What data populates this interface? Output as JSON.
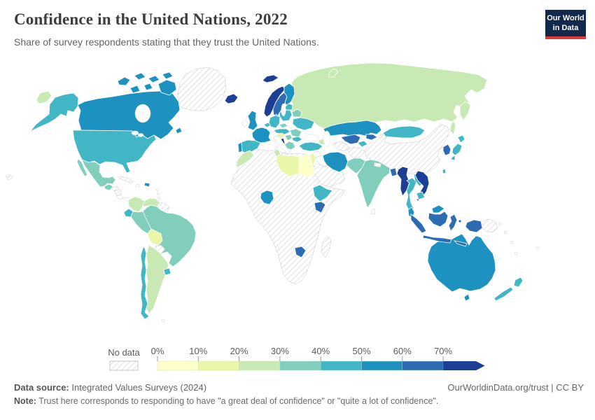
{
  "header": {
    "title": "Confidence in the United Nations, 2022",
    "subtitle": "Share of survey respondents stating that they trust the United Nations."
  },
  "logo": {
    "line1": "Our World",
    "line2": "in Data",
    "bg_color": "#12294b",
    "bar_color": "#dc3e34"
  },
  "legend": {
    "no_data_label": "No data",
    "tick_labels": [
      "0%",
      "10%",
      "20%",
      "30%",
      "40%",
      "50%",
      "60%",
      "70%"
    ],
    "bin_keys": [
      "0-10%",
      "10-20%",
      "20-30%",
      "30-40%",
      "40-50%",
      "50-60%",
      "60-70%",
      "70%+"
    ]
  },
  "footer": {
    "source_label": "Data source:",
    "source_value": "Integrated Values Surveys (2024)",
    "rights": "OurWorldinData.org/trust | CC BY",
    "note_label": "Note:",
    "note_value": "Trust here corresponds to responding to have \"a great deal of confidence\" or \"quite a lot of confidence\"."
  },
  "chart_data": {
    "type": "choropleth",
    "title": "Confidence in the United Nations, 2022",
    "unit": "% of survey respondents trusting the UN",
    "legend_position": "bottom",
    "axis_range_percent": [
      0,
      80
    ],
    "palette": {
      "0-10%": "#fefec9",
      "10-20%": "#eaf7a8",
      "20-30%": "#c9e9b4",
      "30-40%": "#80cebb",
      "40-50%": "#41b6c4",
      "50-60%": "#1d91c0",
      "60-70%": "#2d6cb3",
      "70%+": "#1c3e94",
      "no-data": "hatch",
      "not-shown": "#ffffff"
    },
    "country_bins": {
      "canada": "50-60%",
      "usa": "40-50%",
      "greenland": "no-data",
      "hawaii": "no-data",
      "mexico": "30-40%",
      "guatemala": "30-40%",
      "honduras": "no-data",
      "nicaragua": "no-data",
      "costa-rica": "not-shown",
      "panama": "not-shown",
      "cuba": "no-data",
      "dominican-republic": "50-60%",
      "jamaica": "not-shown",
      "antilles": "not-shown",
      "colombia": "20-30%",
      "venezuela": "20-30%",
      "guyana": "no-data",
      "ecuador": "40-50%",
      "peru": "30-40%",
      "brazil": "30-40%",
      "bolivia": "10-20%",
      "paraguay": "no-data",
      "uruguay": "40-50%",
      "argentina": "20-30%",
      "chile": "40-50%",
      "falkland": "not-shown",
      "iceland": "70%+",
      "norway": "70%+",
      "sweden": "60-70%",
      "finland": "50-60%",
      "denmark": "50-60%",
      "uk": "50-60%",
      "ireland": "not-shown",
      "portugal": "50-60%",
      "spain": "40-50%",
      "france": "50-60%",
      "benelux": "40-50%",
      "germany": "40-50%",
      "poland": "40-50%",
      "baltics": "40-50%",
      "belarus": "30-40%",
      "ukraine": "40-50%",
      "romania": "30-40%",
      "czechia": "30-40%",
      "austria-hungary": "40-50%",
      "croatia": "10-20%",
      "serbia": "30-40%",
      "albania": "70%+",
      "greece": "30-40%",
      "bulgaria": "40-50%",
      "italy": "not-shown",
      "russia": "20-30%",
      "kazakhstan": "50-60%",
      "caucasus": "20-30%",
      "turkey": "40-50%",
      "syria": "not-shown",
      "iraq": "not-shown",
      "jordan-israel": "10-20%",
      "saudi-arabia": "no-data",
      "iran": "50-60%",
      "turkmenistan": "no-data",
      "uzbekistan": "60-70%",
      "kyrgyzstan": "60-70%",
      "tajikistan": "40-50%",
      "afghanistan": "no-data",
      "pakistan": "30-40%",
      "india": "30-40%",
      "nepal": "no-data",
      "bangladesh": "60-70%",
      "sri-lanka": "not-shown",
      "china": "no-data",
      "mongolia": "40-50%",
      "south-korea": "60-70%",
      "japan": "40-50%",
      "taiwan": "40-50%",
      "myanmar": "70%+",
      "thailand": "40-50%",
      "laos": "40-50%",
      "vietnam": "70%+",
      "cambodia": "40-50%",
      "malaysia": "50-60%",
      "indonesia": "60-70%",
      "papua-new-guinea": "no-data",
      "australia": "50-60%",
      "new-zealand": "40-50%",
      "pacific-islands": "not-shown",
      "africa-other": "no-data",
      "morocco": "20-30%",
      "tunisia": "20-30%",
      "libya": "10-20%",
      "egypt": "0-10%",
      "nigeria": "50-60%",
      "ethiopia": "40-50%",
      "kenya": "60-70%",
      "zimbabwe": "60-70%",
      "madagascar": "no-data"
    }
  }
}
